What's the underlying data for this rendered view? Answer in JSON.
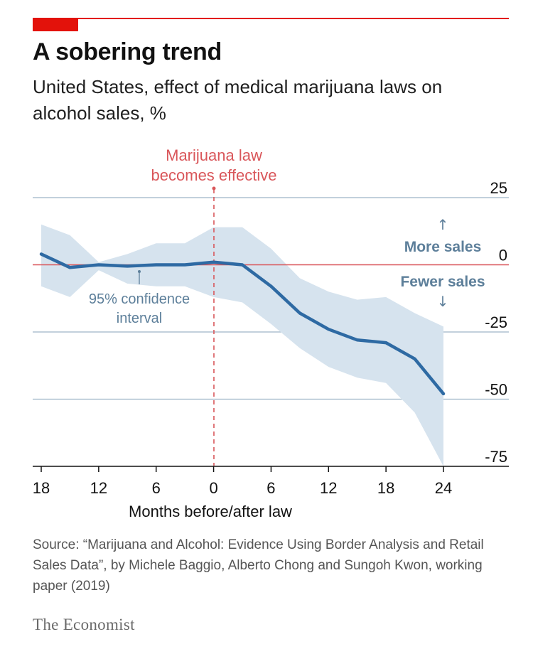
{
  "title": "A sobering trend",
  "subtitle": "United States, effect of medical marijuana laws on alcohol sales, %",
  "source": "Source: “Marijuana and Alcohol: Evidence Using Border Analysis and Retail Sales Data”, by Michele Baggio, Alberto Chong and Sungoh Kwon, working paper (2019)",
  "logo": "The Economist",
  "colors": {
    "accent": "#e3120b",
    "line": "#2e6aa3",
    "band": "#d6e3ee",
    "grid": "#9db4c6",
    "annotation": "#5d7f9a",
    "law_marker": "#d9565a"
  },
  "chart_data": {
    "type": "line",
    "title": "A sobering trend",
    "subtitle": "United States, effect of medical marijuana laws on alcohol sales, %",
    "xlabel": "Months before/after law",
    "ylabel": "",
    "xlim": [
      -18,
      24
    ],
    "ylim": [
      -75,
      25
    ],
    "x_ticks": [
      -18,
      -12,
      -6,
      0,
      6,
      12,
      18,
      24
    ],
    "x_tick_labels": [
      "18",
      "12",
      "6",
      "0",
      "6",
      "12",
      "18",
      "24"
    ],
    "y_ticks": [
      25,
      0,
      -25,
      -50,
      -75
    ],
    "y_tick_labels": [
      "25",
      "0",
      "-25",
      "-50",
      "-75"
    ],
    "grid": true,
    "series": [
      {
        "x": [
          -18,
          -15,
          -12,
          -9,
          -6,
          -3,
          0,
          3,
          6,
          9,
          12,
          15,
          18,
          21,
          24
        ],
        "values": [
          4,
          -1,
          0,
          -0.5,
          0,
          0,
          1,
          0,
          -8,
          -18,
          -24,
          -28,
          -29,
          -35,
          -48
        ]
      }
    ],
    "confidence_interval": {
      "label": "95% confidence interval",
      "x": [
        -18,
        -15,
        -12,
        -9,
        -6,
        -3,
        0,
        3,
        6,
        9,
        12,
        15,
        18,
        21,
        24
      ],
      "upper": [
        15,
        11,
        1,
        4,
        8,
        8,
        14,
        14,
        6,
        -5,
        -10,
        -13,
        -12,
        -18,
        -23
      ],
      "lower": [
        -8,
        -12,
        -2,
        -7,
        -8,
        -8,
        -12,
        -14,
        -22,
        -31,
        -38,
        -42,
        -44,
        -55,
        -75
      ]
    },
    "annotations": [
      {
        "text": "Marijuana law becomes effective",
        "x": 0
      },
      {
        "text": "More sales",
        "direction": "up"
      },
      {
        "text": "Fewer sales",
        "direction": "down"
      }
    ]
  }
}
